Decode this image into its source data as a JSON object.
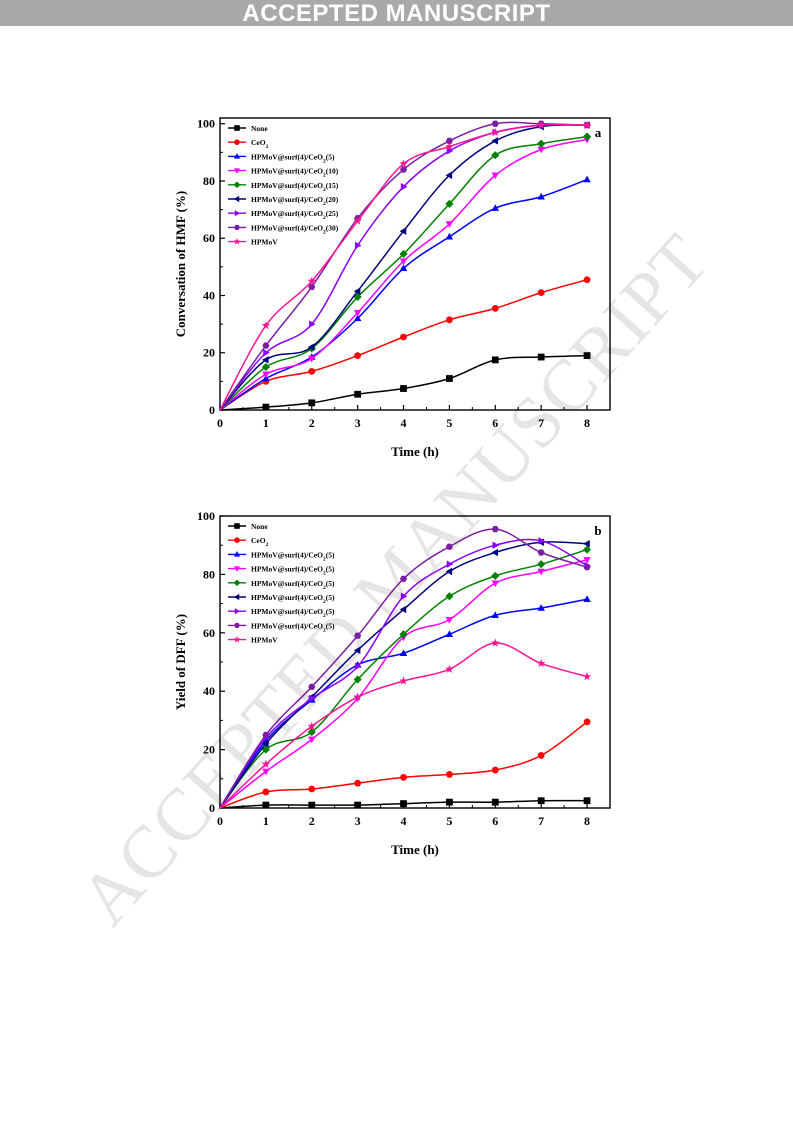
{
  "header": {
    "banner_text": "ACCEPTED MANUSCRIPT"
  },
  "watermark": {
    "text": "ACCEPTED MANUSCRIPT"
  },
  "chart_data": [
    {
      "type": "line",
      "panel_label": "a",
      "xlabel": "Time (h)",
      "ylabel": "Conversation of HMF (%)",
      "xlim": [
        0,
        8.5
      ],
      "ylim": [
        0,
        102
      ],
      "xticks": [
        0,
        1,
        2,
        3,
        4,
        5,
        6,
        7,
        8
      ],
      "yticks": [
        0,
        20,
        40,
        60,
        80,
        100
      ],
      "grid": false,
      "legend_position": "top-left",
      "x": [
        0,
        1,
        2,
        3,
        4,
        5,
        6,
        7,
        8
      ],
      "series": [
        {
          "name": "None",
          "name_parts": [
            "None"
          ],
          "marker": "square",
          "color": "#000000",
          "values": [
            0,
            1,
            2.5,
            5.5,
            7.5,
            11,
            17.5,
            18.5,
            19
          ]
        },
        {
          "name": "CeO2",
          "name_parts": [
            "CeO",
            "2"
          ],
          "marker": "circle",
          "color": "#ff0000",
          "values": [
            0,
            10,
            13.5,
            19,
            25.5,
            31.5,
            35.5,
            41,
            45.5
          ]
        },
        {
          "name": "HPMoV@surf(4)/CeO2(5)",
          "name_parts": [
            "HPMoV@surf(4)/CeO",
            "2",
            "(5)"
          ],
          "marker": "triangle-up",
          "color": "#0000ff",
          "values": [
            0,
            11,
            18.5,
            32,
            49.5,
            60.5,
            70.5,
            74.5,
            80.5
          ]
        },
        {
          "name": "HPMoV@surf(4)/CeO2(10)",
          "name_parts": [
            "HPMoV@surf(4)/CeO",
            "2",
            "(10)"
          ],
          "marker": "triangle-down",
          "color": "#ff00ff",
          "values": [
            0,
            12.5,
            18,
            34,
            52,
            65,
            82,
            91,
            94.5
          ]
        },
        {
          "name": "HPMoV@surf(4)/CeO2(15)",
          "name_parts": [
            "HPMoV@surf(4)/CeO",
            "2",
            "(15)"
          ],
          "marker": "diamond",
          "color": "#008000",
          "values": [
            0,
            15,
            21.5,
            39.5,
            54.5,
            72,
            89,
            93,
            95.5
          ]
        },
        {
          "name": "HPMoV@surf(4)/CeO2(20)",
          "name_parts": [
            "HPMoV@surf(4)/CeO",
            "2",
            "(20)"
          ],
          "marker": "triangle-left",
          "color": "#000080",
          "values": [
            0,
            17.5,
            22,
            41.5,
            62.5,
            82,
            94,
            99,
            99.5
          ]
        },
        {
          "name": "HPMoV@surf(4)/CeO2(25)",
          "name_parts": [
            "HPMoV@surf(4)/CeO",
            "2",
            "(25)"
          ],
          "marker": "triangle-right",
          "color": "#8b00ff",
          "values": [
            0,
            20,
            30,
            57.5,
            78,
            90.5,
            97,
            99.5,
            99.5
          ]
        },
        {
          "name": "HPMoV@surf(4)/CeO2(30)",
          "name_parts": [
            "HPMoV@surf(4)/CeO",
            "2",
            "(30)"
          ],
          "marker": "hexagon",
          "color": "#7b1fa2",
          "values": [
            0,
            22.5,
            43,
            67,
            84,
            94,
            100,
            100,
            99.5
          ]
        },
        {
          "name": "HPMoV",
          "name_parts": [
            "HPMoV"
          ],
          "marker": "star",
          "color": "#ff1493",
          "values": [
            0,
            29.5,
            45,
            66,
            86,
            92,
            97,
            99.5,
            99.5
          ]
        }
      ]
    },
    {
      "type": "line",
      "panel_label": "b",
      "xlabel": "Time (h)",
      "ylabel": "Yield of DFF (%)",
      "xlim": [
        0,
        8.5
      ],
      "ylim": [
        0,
        100
      ],
      "xticks": [
        0,
        1,
        2,
        3,
        4,
        5,
        6,
        7,
        8
      ],
      "yticks": [
        0,
        20,
        40,
        60,
        80,
        100
      ],
      "grid": false,
      "legend_position": "top-left",
      "x": [
        0,
        1,
        2,
        3,
        4,
        5,
        6,
        7,
        8
      ],
      "series": [
        {
          "name": "None",
          "name_parts": [
            "None"
          ],
          "marker": "square",
          "color": "#000000",
          "values": [
            0,
            1,
            1,
            1,
            1.5,
            2,
            2,
            2.5,
            2.5
          ]
        },
        {
          "name": "CeO2",
          "name_parts": [
            "CeO",
            "2"
          ],
          "marker": "circle",
          "color": "#ff0000",
          "values": [
            0,
            5.5,
            6.5,
            8.5,
            10.5,
            11.5,
            13,
            18,
            29.5
          ]
        },
        {
          "name": "HPMoV@surf(4)/CeO2(5)",
          "name_parts": [
            "HPMoV@surf(4)/CeO",
            "2",
            "(5)"
          ],
          "marker": "triangle-up",
          "color": "#0000ff",
          "values": [
            0,
            23,
            37,
            49,
            53,
            59.5,
            66,
            68.5,
            71.5
          ]
        },
        {
          "name": "HPMoV@surf(4)/CeO2(5)",
          "name_parts": [
            "HPMoV@surf(4)/CeO",
            "2",
            "(5)"
          ],
          "marker": "triangle-down",
          "color": "#ff00ff",
          "values": [
            0,
            12.5,
            23.5,
            37.5,
            58.5,
            64.5,
            77,
            81,
            85
          ]
        },
        {
          "name": "HPMoV@surf(4)/CeO2(5)",
          "name_parts": [
            "HPMoV@surf(4)/CeO",
            "2",
            "(5)"
          ],
          "marker": "diamond",
          "color": "#008000",
          "values": [
            0,
            20,
            26,
            44,
            59.5,
            72.5,
            79.5,
            83.5,
            88.5
          ]
        },
        {
          "name": "HPMoV@surf(4)/CeO2(5)",
          "name_parts": [
            "HPMoV@surf(4)/CeO",
            "2",
            "(5)"
          ],
          "marker": "triangle-left",
          "color": "#000080",
          "values": [
            0,
            22,
            38,
            54,
            68,
            81,
            87.5,
            91,
            90.5
          ]
        },
        {
          "name": "HPMoV@surf(4)/CeO2(5)",
          "name_parts": [
            "HPMoV@surf(4)/CeO",
            "2",
            "(5)"
          ],
          "marker": "triangle-right",
          "color": "#8b00ff",
          "values": [
            0,
            24,
            37.5,
            48.5,
            72.5,
            83.5,
            90,
            91.5,
            83
          ]
        },
        {
          "name": "HPMoV@surf(4)/CeO2(5)",
          "name_parts": [
            "HPMoV@surf(4)/CeO",
            "2",
            "(5)"
          ],
          "marker": "hexagon",
          "color": "#7b1fa2",
          "values": [
            0,
            25,
            41.5,
            59,
            78.5,
            89.5,
            95.5,
            87.5,
            82.5
          ]
        },
        {
          "name": "HPMoV",
          "name_parts": [
            "HPMoV"
          ],
          "marker": "star",
          "color": "#ff1493",
          "values": [
            0,
            15,
            28,
            38,
            43.5,
            47.5,
            56.5,
            49.5,
            45
          ]
        }
      ]
    }
  ]
}
